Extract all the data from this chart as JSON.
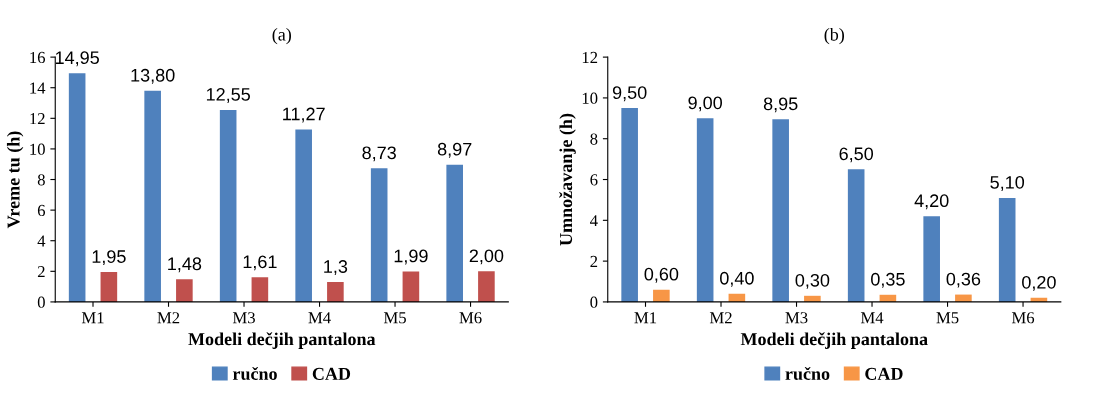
{
  "chart_data": [
    {
      "type": "bar",
      "title": "(a)",
      "xlabel": "Modeli dečjih pantalona",
      "ylabel": "Vreme tu (h)",
      "categories": [
        "M1",
        "M2",
        "M3",
        "M4",
        "M5",
        "M6"
      ],
      "ylim": [
        0,
        16
      ],
      "yticks": [
        0,
        2,
        4,
        6,
        8,
        10,
        12,
        14,
        16
      ],
      "legend": "bottom",
      "grid": false,
      "series": [
        {
          "name": "ručno",
          "color": "#4f81bd",
          "values": [
            14.95,
            13.8,
            12.55,
            11.27,
            8.73,
            8.97
          ],
          "value_labels": [
            "14,95",
            "13,80",
            "12,55",
            "11,27",
            "8,73",
            "8,97"
          ]
        },
        {
          "name": "CAD",
          "color": "#c0504d",
          "values": [
            1.95,
            1.48,
            1.61,
            1.3,
            1.99,
            2.0
          ],
          "value_labels": [
            "1,95",
            "1,48",
            "1,61",
            "1,3",
            "1,99",
            "2,00"
          ]
        }
      ]
    },
    {
      "type": "bar",
      "title": "(b)",
      "xlabel": "Modeli dečjih pantalona",
      "ylabel": "Umnožavanje (h)",
      "categories": [
        "M1",
        "M2",
        "M3",
        "M4",
        "M5",
        "M6"
      ],
      "ylim": [
        0,
        12
      ],
      "yticks": [
        0,
        2,
        4,
        6,
        8,
        10,
        12
      ],
      "legend": "bottom",
      "grid": false,
      "series": [
        {
          "name": "ručno",
          "color": "#4f81bd",
          "values": [
            9.5,
            9.0,
            8.95,
            6.5,
            4.2,
            5.1
          ],
          "value_labels": [
            "9,50",
            "9,00",
            "8,95",
            "6,50",
            "4,20",
            "5,10"
          ]
        },
        {
          "name": "CAD",
          "color": "#f79646",
          "values": [
            0.6,
            0.4,
            0.3,
            0.35,
            0.36,
            0.2
          ],
          "value_labels": [
            "0,60",
            "0,40",
            "0,30",
            "0,35",
            "0,36",
            "0,20"
          ]
        }
      ]
    }
  ]
}
